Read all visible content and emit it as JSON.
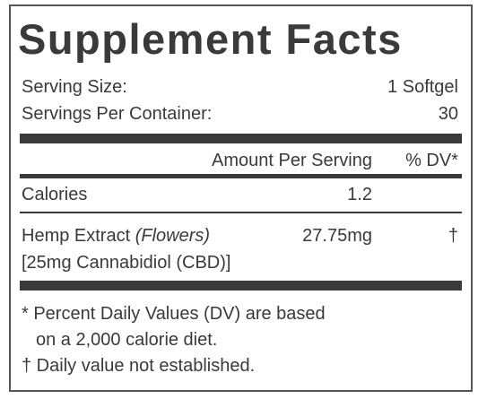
{
  "title": "Supplement Facts",
  "serving_info": [
    {
      "label": "Serving Size:",
      "value": "1 Softgel"
    },
    {
      "label": "Servings Per Container:",
      "value": "30"
    }
  ],
  "table": {
    "header": {
      "amount": "Amount Per Serving",
      "dv": "% DV*"
    },
    "rows": [
      {
        "name": "Calories",
        "amount": "1.2"
      },
      {
        "name": "Hemp Extract",
        "name_note": "(Flowers)",
        "amount": "27.75mg",
        "dv": "†",
        "sub": "[25mg Cannabidiol (CBD)]"
      }
    ]
  },
  "footnotes": [
    {
      "lines": [
        "* Percent Daily Values (DV) are based",
        "on a 2,000 calorie diet."
      ]
    },
    {
      "lines": [
        "† Daily value not established."
      ]
    }
  ]
}
